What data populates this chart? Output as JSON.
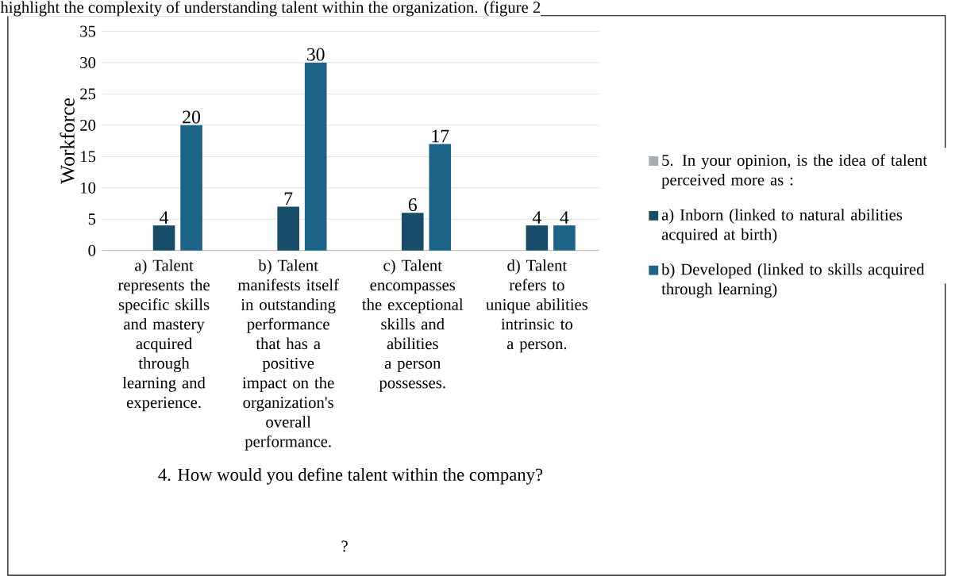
{
  "chart_data": {
    "type": "bar",
    "ylabel": "Workforce",
    "xlabel": "4. How would you define talent within the company?",
    "categories": [
      "a) Talent represents the specific skills and mastery acquired through learning and experience.",
      "b) Talent manifests itself in outstanding performance that has a positive impact on the organization's overall performance.",
      "c) Talent encompasses the exceptional skills and abilities a person possesses.",
      "d) Talent refers to unique abilities intrinsic to a person."
    ],
    "series": [
      {
        "name": "5. In your opinion, is the idea of talent perceived more as :",
        "color": "#a5acb4",
        "values": [
          null,
          null,
          null,
          null
        ]
      },
      {
        "name": "a) Inborn (linked to natural abilities acquired at birth)",
        "color": "#174d69",
        "values": [
          4,
          7,
          6,
          4
        ]
      },
      {
        "name": "b) Developed (linked to skills acquired through learning)",
        "color": "#1b6488",
        "values": [
          20,
          30,
          17,
          4
        ]
      }
    ],
    "ylim": [
      0,
      35
    ],
    "yticks": [
      0,
      5,
      10,
      15,
      20,
      25,
      30,
      35
    ],
    "grid": "y",
    "legend": "right",
    "data_labels": true,
    "annotations": [
      "highlight the complexity of understanding talent within the organization. (figure 2",
      "?"
    ]
  }
}
